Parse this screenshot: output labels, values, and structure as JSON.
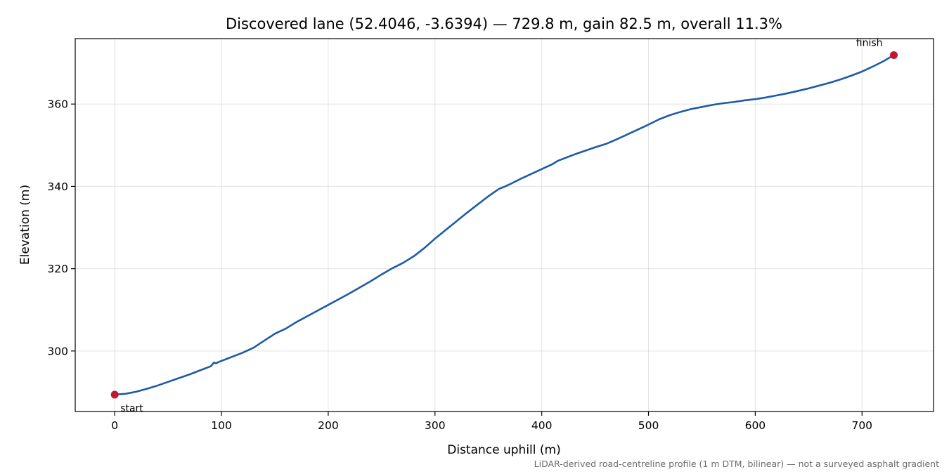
{
  "chart_data": {
    "type": "line",
    "title": "Discovered lane (52.4046, -3.6394) — 729.8 m, gain 82.5 m, overall 11.3%",
    "xlabel": "Distance uphill (m)",
    "ylabel": "Elevation (m)",
    "xlim": [
      -37,
      767
    ],
    "ylim": [
      285.3,
      375.9
    ],
    "xticks": [
      0,
      100,
      200,
      300,
      400,
      500,
      600,
      700
    ],
    "yticks": [
      300,
      320,
      340,
      360
    ],
    "xtick_labels": [
      "0",
      "100",
      "200",
      "300",
      "400",
      "500",
      "600",
      "700"
    ],
    "ytick_labels": [
      "300",
      "320",
      "340",
      "360"
    ],
    "grid": true,
    "series": [
      {
        "color": "#1f5aa8",
        "x": [
          0,
          10,
          20,
          30,
          40,
          50,
          60,
          70,
          80,
          90,
          93,
          95,
          97,
          100,
          105,
          110,
          120,
          130,
          140,
          150,
          160,
          170,
          180,
          190,
          200,
          210,
          220,
          230,
          240,
          250,
          260,
          270,
          280,
          290,
          300,
          310,
          320,
          330,
          340,
          350,
          360,
          365,
          370,
          380,
          390,
          400,
          410,
          415,
          420,
          430,
          440,
          450,
          460,
          470,
          480,
          490,
          500,
          510,
          520,
          530,
          540,
          550,
          560,
          570,
          580,
          590,
          600,
          610,
          620,
          630,
          640,
          650,
          660,
          670,
          680,
          690,
          700,
          710,
          720,
          729.8
        ],
        "y": [
          289.4,
          289.6,
          290.1,
          290.8,
          291.6,
          292.5,
          293.4,
          294.3,
          295.3,
          296.3,
          297.2,
          297.0,
          297.3,
          297.6,
          298.1,
          298.6,
          299.6,
          300.8,
          302.5,
          304.2,
          305.4,
          307.0,
          308.4,
          309.8,
          311.2,
          312.6,
          314.0,
          315.5,
          317.0,
          318.6,
          320.1,
          321.4,
          323.0,
          325.0,
          327.3,
          329.4,
          331.5,
          333.6,
          335.6,
          337.6,
          339.4,
          339.9,
          340.5,
          341.8,
          343.0,
          344.2,
          345.4,
          346.2,
          346.7,
          347.7,
          348.6,
          349.5,
          350.3,
          351.4,
          352.6,
          353.8,
          355.0,
          356.3,
          357.3,
          358.1,
          358.8,
          359.3,
          359.8,
          360.2,
          360.5,
          360.9,
          361.2,
          361.6,
          362.1,
          362.6,
          363.2,
          363.8,
          364.5,
          365.2,
          366.0,
          366.9,
          367.9,
          369.1,
          370.4,
          371.9
        ]
      }
    ],
    "markers": [
      {
        "label": "start",
        "x": 0,
        "y": 289.4,
        "color": "#c0182c"
      },
      {
        "label": "finish",
        "x": 729.8,
        "y": 371.9,
        "color": "#c0182c"
      }
    ]
  },
  "footer": {
    "caption": "LiDAR-derived road-centreline profile (1 m DTM, bilinear) — not a surveyed asphalt gradient"
  }
}
